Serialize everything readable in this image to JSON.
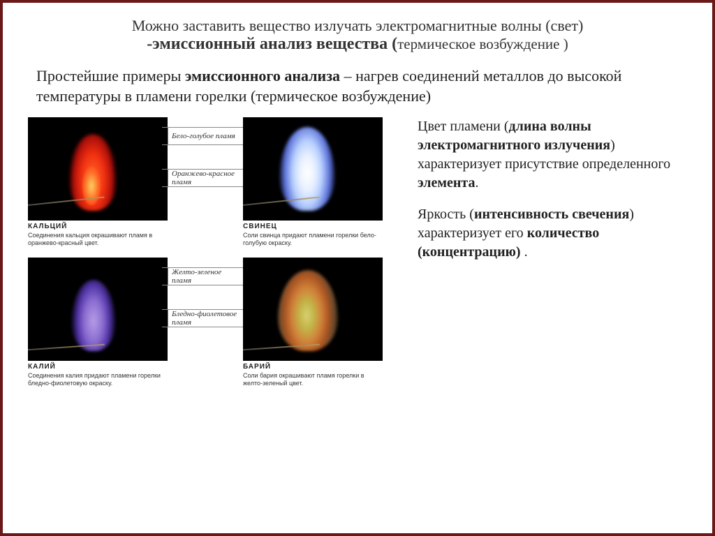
{
  "header": {
    "line1": "Можно заставить вещество излучать электромагнитные волны (свет)",
    "line2_bold": "-эмиссионный анализ вещества (",
    "line2_paren": "термическое возбуждение )"
  },
  "intro": {
    "prefix": "Простейшие примеры ",
    "bold": "эмиссионного анализа",
    "suffix": " – нагрев соединений металлов до высокой температуры в пламени горелки (термическое возбуждение)"
  },
  "row1": {
    "mid1": "Бело-голубое пламя",
    "mid2": "Оранжево-красное пламя",
    "left": {
      "name": "КАЛЬЦИЙ",
      "desc": "Соединения кальция окрашивают пламя в оранжево-красный цвет.",
      "flame_color": "#f03010"
    },
    "right": {
      "name": "СВИНЕЦ",
      "desc": "Соли свинца придают пламени горелки бело-голубую окраску.",
      "flame_color": "#b8d0ff"
    }
  },
  "row2": {
    "mid1": "Желто-зеленое пламя",
    "mid2": "Бледно-фиолетовое пламя",
    "left": {
      "name": "КАЛИЙ",
      "desc": "Соединения калия придают пламени горелки бледно-фиолетовую окраску.",
      "flame_color": "#8a5ae0"
    },
    "right": {
      "name": "БАРИЙ",
      "desc": "Соли бария окрашивают пламя горелки в желто-зеленый цвет.",
      "flame_color": "#d8c850"
    }
  },
  "side": {
    "p1_a": "Цвет пламени (",
    "p1_b": "длина волны электромагнитного излучения",
    "p1_c": ") характеризует присутствие определенного ",
    "p1_d": "элемента",
    "p1_e": ".",
    "p2_a": "Яркость (",
    "p2_b": "интенсивность свечения",
    "p2_c": ") характеризует его ",
    "p2_d": "количество (концентрацию)",
    "p2_e": " ."
  }
}
